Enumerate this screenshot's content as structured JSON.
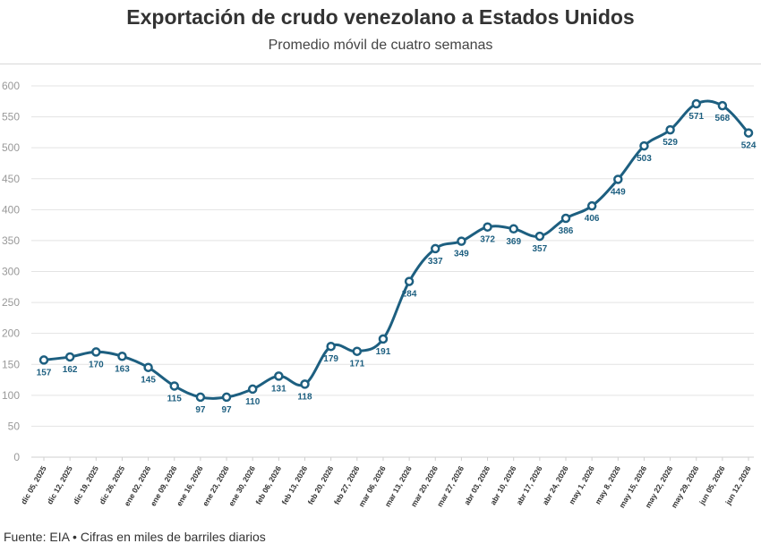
{
  "header": {
    "title": "Exportación de crudo venezolano a Estados Unidos",
    "subtitle": "Promedio móvil de cuatro semanas"
  },
  "footer": {
    "source": "Fuente: EIA • Cifras en miles de barriles diarios"
  },
  "chart_data": {
    "type": "line",
    "title": "Exportación de crudo venezolano a Estados Unidos",
    "subtitle": "Promedio móvil de cuatro semanas",
    "categories": [
      "dic 05, 2025",
      "dic 12, 2025",
      "dic 19, 2025",
      "dic 26, 2025",
      "ene 02, 2026",
      "ene 09, 2026",
      "ene 16, 2026",
      "ene 23, 2026",
      "ene 30, 2026",
      "feb 06, 2026",
      "feb 13, 2026",
      "feb 20, 2026",
      "feb 27, 2026",
      "mar 06, 2026",
      "mar 13, 2026",
      "mar 20, 2026",
      "mar 27, 2026",
      "abr 03, 2026",
      "abr 10, 2026",
      "abr 17, 2026",
      "abr 24, 2026",
      "may 1, 2026",
      "may 8, 2026",
      "may 15, 2026",
      "may 22, 2026",
      "may 29, 2026",
      "jun 05, 2026",
      "jun 12, 2026"
    ],
    "values": [
      157,
      162,
      170,
      163,
      145,
      115,
      97,
      97,
      110,
      131,
      118,
      179,
      171,
      191,
      284,
      337,
      349,
      372,
      369,
      357,
      386,
      406,
      449,
      503,
      529,
      571,
      568,
      524
    ],
    "ylim": [
      0,
      600
    ],
    "yticks": [
      0,
      50,
      100,
      150,
      200,
      250,
      300,
      350,
      400,
      450,
      500,
      550,
      600
    ],
    "grid": true,
    "legend": "none",
    "colors": {
      "line": "#1d5f80",
      "grid": "#e3e3e3",
      "axis": "#999999"
    }
  }
}
